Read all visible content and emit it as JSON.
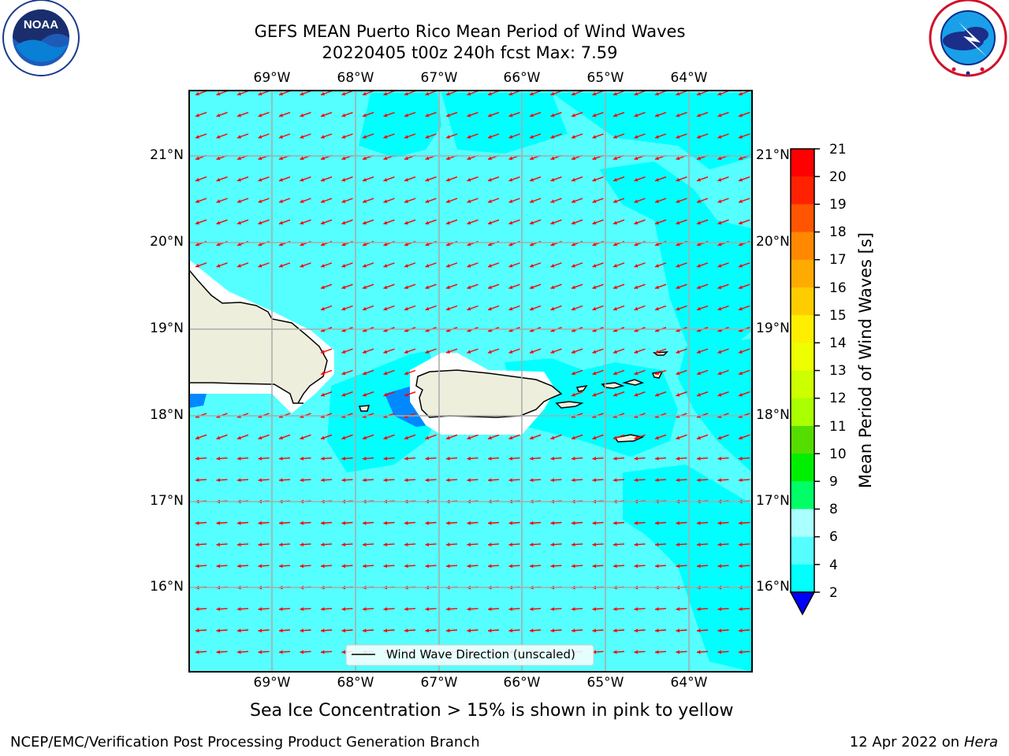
{
  "title": {
    "line1": "GEFS MEAN Puerto Rico Mean Period of Wind Waves",
    "line2": "20220405 t00z 240h fcst   Max: 7.59"
  },
  "logos": {
    "left": {
      "icon": "noaa-logo-icon",
      "text": "NOAA"
    },
    "right": {
      "icon": "nws-logo-icon",
      "ring_text": "NATIONAL WEATHER SERVICE"
    }
  },
  "map": {
    "lon_ticks": [
      "69°W",
      "68°W",
      "67°W",
      "66°W",
      "65°W",
      "64°W"
    ],
    "lat_ticks": [
      "21°N",
      "20°N",
      "19°N",
      "18°N",
      "17°N",
      "16°N"
    ],
    "legend": "Wind Wave Direction (unscaled)",
    "colors": {
      "ocean_main": "#55ffff",
      "ocean_low": "#00ffff",
      "land": "#eeeedd",
      "arrow": "#ff0000",
      "grid": "#aaaaaa"
    }
  },
  "colorbar": {
    "label": "Mean Period of Wind Waves [s]",
    "ticks": [
      "21",
      "20",
      "19",
      "18",
      "17",
      "16",
      "15",
      "14",
      "13",
      "12",
      "11",
      "10",
      "9",
      "8",
      "6",
      "4",
      "2"
    ],
    "colors": [
      "#ff0000",
      "#ff2200",
      "#ff5500",
      "#ff8800",
      "#ffaa00",
      "#ffcc00",
      "#ffee00",
      "#eeff00",
      "#ccff00",
      "#aaff00",
      "#55dd00",
      "#00ee00",
      "#00ff66",
      "#55ff99",
      "#aaffff",
      "#55ffff",
      "#00ffff",
      "#0088ff"
    ],
    "extend_color": "#0000ff"
  },
  "caption": "Sea Ice Concentration > 15% is shown in pink to yellow",
  "footer": {
    "left": "NCEP/EMC/Verification Post Processing Product Generation Branch",
    "right_date": "12 Apr 2022 on ",
    "right_host": "Hera"
  }
}
